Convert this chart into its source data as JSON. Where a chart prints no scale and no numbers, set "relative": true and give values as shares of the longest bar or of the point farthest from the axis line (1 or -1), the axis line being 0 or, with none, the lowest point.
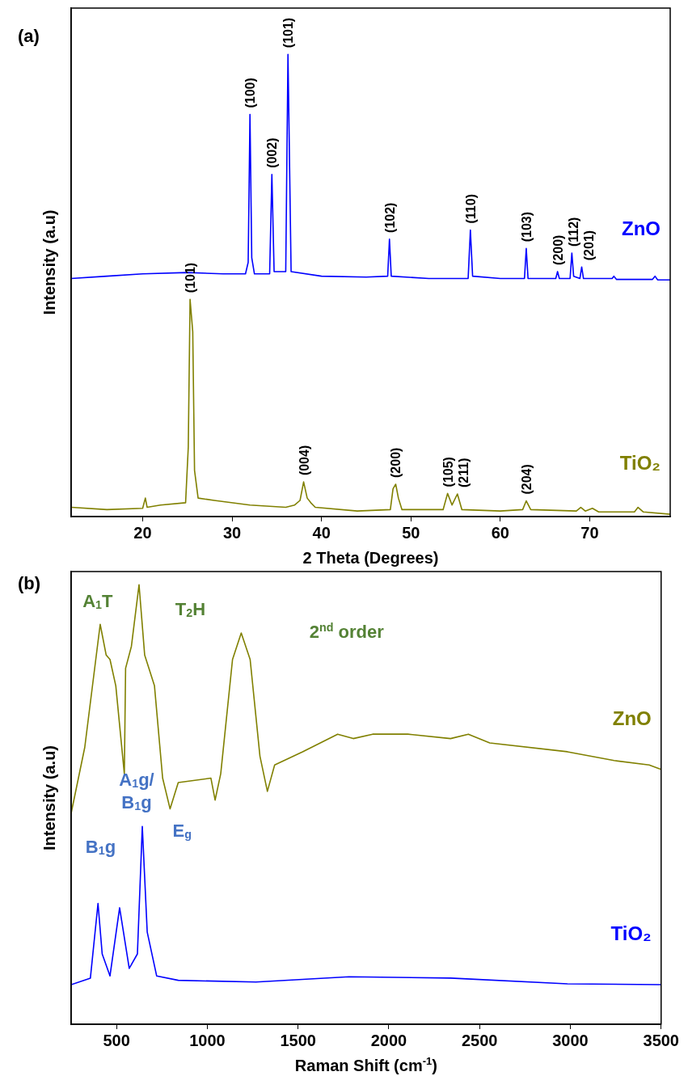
{
  "chart_data": [
    {
      "type": "line",
      "title": "(a)",
      "xlabel": "2 Theta (Degrees)",
      "ylabel": "Intensity (a.u)",
      "relative": true,
      "tick_labels": "x",
      "xlim": [
        12,
        79
      ],
      "xticks": [
        20,
        30,
        40,
        50,
        60,
        70
      ],
      "grid": false,
      "series": [
        {
          "name": "ZnO",
          "color": "#0000ff",
          "x": [
            12,
            16,
            20,
            25,
            29,
            31.5,
            31.8,
            32.0,
            32.2,
            32.5,
            34.2,
            34.45,
            34.7,
            36.0,
            36.25,
            36.4,
            36.6,
            40,
            45,
            47.4,
            47.6,
            47.8,
            52,
            56.4,
            56.65,
            56.9,
            60,
            62.7,
            62.9,
            63.1,
            66.2,
            66.4,
            66.6,
            67.8,
            68.0,
            68.2,
            68.9,
            69.1,
            69.3,
            72.5,
            72.7,
            73,
            77,
            77.3,
            77.6,
            79
          ],
          "values": [
            0.515,
            0.52,
            0.525,
            0.528,
            0.525,
            0.525,
            0.55,
            0.87,
            0.56,
            0.525,
            0.525,
            0.74,
            0.53,
            0.53,
            1.0,
            0.8,
            0.53,
            0.52,
            0.518,
            0.52,
            0.6,
            0.52,
            0.515,
            0.515,
            0.62,
            0.52,
            0.515,
            0.515,
            0.58,
            0.515,
            0.515,
            0.53,
            0.515,
            0.515,
            0.57,
            0.52,
            0.515,
            0.54,
            0.515,
            0.515,
            0.52,
            0.513,
            0.513,
            0.52,
            0.512,
            0.512
          ]
        },
        {
          "name": "TiO₂",
          "color": "#808000",
          "x": [
            12,
            16,
            20,
            20.3,
            20.5,
            22,
            24.8,
            25.1,
            25.3,
            25.6,
            25.8,
            26.2,
            28,
            32,
            36,
            37,
            37.6,
            38.0,
            38.4,
            38.8,
            39.3,
            44,
            47.7,
            48.0,
            48.3,
            48.6,
            49,
            53.6,
            54.1,
            54.6,
            55.2,
            55.7,
            60,
            62.5,
            62.9,
            63.4,
            68.5,
            69,
            69.5,
            70.3,
            71,
            75,
            75.4,
            76,
            79
          ],
          "values": [
            0.02,
            0.015,
            0.018,
            0.04,
            0.02,
            0.025,
            0.03,
            0.15,
            0.47,
            0.4,
            0.1,
            0.04,
            0.035,
            0.025,
            0.02,
            0.025,
            0.035,
            0.075,
            0.04,
            0.03,
            0.02,
            0.012,
            0.015,
            0.06,
            0.07,
            0.04,
            0.015,
            0.015,
            0.05,
            0.025,
            0.049,
            0.015,
            0.012,
            0.015,
            0.034,
            0.015,
            0.012,
            0.02,
            0.012,
            0.018,
            0.01,
            0.01,
            0.02,
            0.01,
            0.005
          ]
        }
      ],
      "annotations": [
        {
          "text": "(100)",
          "x": 32.0,
          "y": 0.87
        },
        {
          "text": "(002)",
          "x": 34.45,
          "y": 0.74
        },
        {
          "text": "(101)",
          "x": 36.25,
          "y": 1.0
        },
        {
          "text": "(102)",
          "x": 47.6,
          "y": 0.6
        },
        {
          "text": "(110)",
          "x": 56.65,
          "y": 0.62
        },
        {
          "text": "(103)",
          "x": 62.9,
          "y": 0.58
        },
        {
          "text": "(200)",
          "x": 66.4,
          "y": 0.53
        },
        {
          "text": "(112)",
          "x": 68.0,
          "y": 0.57
        },
        {
          "text": "(201)",
          "x": 69.1,
          "y": 0.54
        },
        {
          "text": "(101)",
          "x": 25.3,
          "y": 0.47
        },
        {
          "text": "(004)",
          "x": 38.0,
          "y": 0.075
        },
        {
          "text": "(200)",
          "x": 48.3,
          "y": 0.07
        },
        {
          "text": "(105)",
          "x": 54.1,
          "y": 0.05
        },
        {
          "text": "(211)",
          "x": 55.2,
          "y": 0.049
        },
        {
          "text": "(204)",
          "x": 62.9,
          "y": 0.034
        }
      ]
    },
    {
      "type": "line",
      "title": "(b)",
      "xlabel": "Raman Shift (cm$^{-1}$)",
      "ylabel": "Intensity (a.u)",
      "relative": true,
      "tick_labels": "x",
      "xlim": [
        250,
        3500
      ],
      "xticks": [
        500,
        1000,
        1500,
        2000,
        2500,
        3000,
        3500
      ],
      "grid": false,
      "series": [
        {
          "name": "ZnO",
          "color": "#808000",
          "x": [
            250,
            325,
            410,
            443,
            464,
            496,
            543,
            550,
            582,
            624,
            655,
            709,
            754,
            795,
            840,
            1020,
            1043,
            1074,
            1139,
            1187,
            1236,
            1290,
            1331,
            1371,
            1525,
            1718,
            1804,
            1911,
            2105,
            2340,
            2438,
            2556,
            2984,
            3241,
            3434,
            3500
          ],
          "values": [
            0.48,
            0.63,
            0.91,
            0.84,
            0.83,
            0.77,
            0.57,
            0.81,
            0.86,
            1.0,
            0.84,
            0.77,
            0.56,
            0.49,
            0.55,
            0.56,
            0.51,
            0.57,
            0.83,
            0.89,
            0.83,
            0.61,
            0.53,
            0.59,
            0.62,
            0.66,
            0.65,
            0.66,
            0.66,
            0.65,
            0.66,
            0.64,
            0.62,
            0.6,
            0.59,
            0.58
          ]
        },
        {
          "name": "TiO₂",
          "color": "#0000ff",
          "x": [
            250,
            356,
            398,
            421,
            464,
            517,
            570,
            615,
            642,
            669,
            721,
            840,
            1268,
            1781,
            2340,
            2984,
            3500
          ],
          "values": [
            0.09,
            0.105,
            0.275,
            0.16,
            0.11,
            0.265,
            0.127,
            0.16,
            0.45,
            0.21,
            0.11,
            0.1,
            0.096,
            0.108,
            0.105,
            0.092,
            0.09
          ]
        }
      ],
      "annotations": [
        "A$_{1}$T",
        "T$_{2}$H",
        "2$^{nd}$ order",
        "A$_{1}$g/\nB$_{1}$g",
        "B$_{1}$g",
        "E$_{g}$"
      ]
    }
  ]
}
